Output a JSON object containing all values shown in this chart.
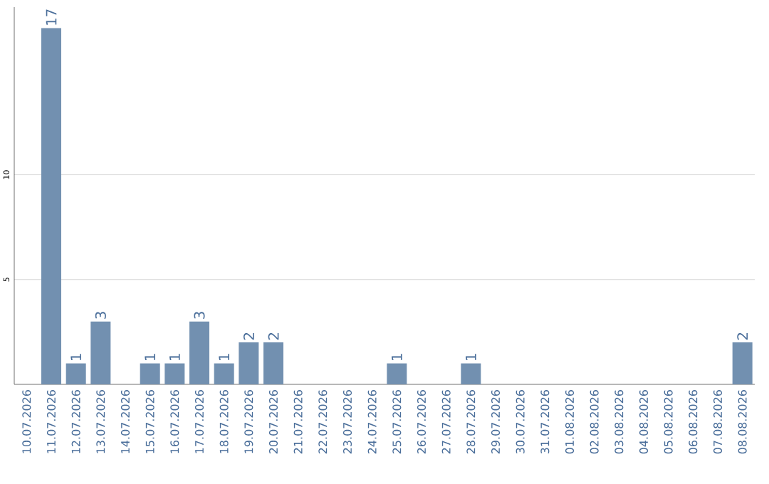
{
  "chart_data": {
    "type": "bar",
    "categories": [
      "10.07.2026",
      "11.07.2026",
      "12.07.2026",
      "13.07.2026",
      "14.07.2026",
      "15.07.2026",
      "16.07.2026",
      "17.07.2026",
      "18.07.2026",
      "19.07.2026",
      "20.07.2026",
      "21.07.2026",
      "22.07.2026",
      "23.07.2026",
      "24.07.2026",
      "25.07.2026",
      "26.07.2026",
      "27.07.2026",
      "28.07.2026",
      "29.07.2026",
      "30.07.2026",
      "31.07.2026",
      "01.08.2026",
      "02.08.2026",
      "03.08.2026",
      "04.08.2026",
      "05.08.2026",
      "06.08.2026",
      "07.08.2026",
      "08.08.2026"
    ],
    "values": [
      0,
      17,
      1,
      3,
      0,
      1,
      1,
      3,
      1,
      2,
      2,
      0,
      0,
      0,
      0,
      1,
      0,
      0,
      1,
      0,
      0,
      0,
      0,
      0,
      0,
      0,
      0,
      0,
      0,
      2
    ],
    "value_labels": [
      null,
      "17",
      "1",
      "3",
      null,
      "1",
      "1",
      "3",
      "1",
      "2",
      "2",
      null,
      null,
      null,
      null,
      "1",
      null,
      null,
      "1",
      null,
      null,
      null,
      null,
      null,
      null,
      null,
      null,
      null,
      null,
      "2"
    ],
    "color": "#7290b0",
    "ylim": [
      0,
      18
    ],
    "yticks": [
      5,
      10
    ],
    "grid": "y"
  }
}
